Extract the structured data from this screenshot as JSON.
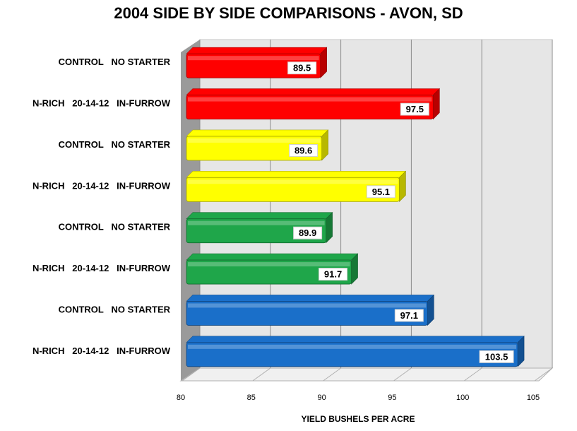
{
  "chart_data": {
    "type": "bar",
    "orientation": "horizontal",
    "title": "2004 SIDE BY SIDE COMPARISONS - AVON, SD",
    "xlabel": "YIELD BUSHELS PER ACRE",
    "ylabel": "",
    "xlim": [
      80,
      105
    ],
    "xticks": [
      80,
      85,
      90,
      95,
      100,
      105
    ],
    "grid": true,
    "style": "3d",
    "categories": [
      "CONTROL   NO STARTER",
      "N-RICH   20-14-12   IN-FURROW",
      "CONTROL   NO STARTER",
      "N-RICH   20-14-12   IN-FURROW",
      "CONTROL   NO STARTER",
      "N-RICH   20-14-12   IN-FURROW",
      "CONTROL   NO STARTER",
      "N-RICH   20-14-12   IN-FURROW"
    ],
    "values": [
      89.5,
      97.5,
      89.6,
      95.1,
      89.9,
      91.7,
      97.1,
      103.5
    ],
    "value_labels": [
      "89.5",
      "97.5",
      "89.6",
      "95.1",
      "89.9",
      "91.7",
      "97.1",
      "103.5"
    ],
    "colors": [
      "#ff0000",
      "#ff0000",
      "#ffff00",
      "#ffff00",
      "#1fa64a",
      "#1fa64a",
      "#1a6fc9",
      "#1a6fc9"
    ]
  }
}
